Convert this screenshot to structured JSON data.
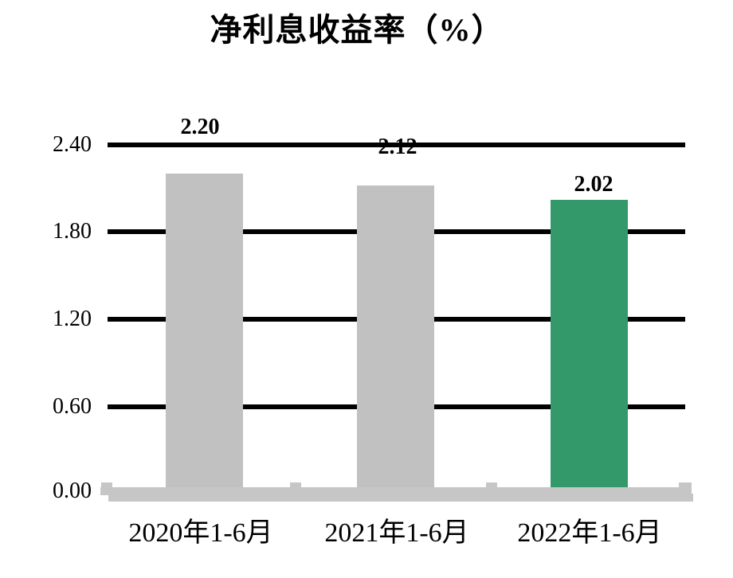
{
  "chart_data": {
    "type": "bar",
    "title": "净利息收益率（%）",
    "categories": [
      "2020年1-6月",
      "2021年1-6月",
      "2022年1-6月"
    ],
    "values": [
      2.2,
      2.12,
      2.02
    ],
    "data_labels": [
      "2.20",
      "2.12",
      "2.02"
    ],
    "bar_colors": [
      "#c1c1c1",
      "#c1c1c1",
      "#33996b"
    ],
    "ylim": [
      0,
      2.4
    ],
    "ytick_labels": [
      "0.00",
      "0.60",
      "1.20",
      "1.80",
      "2.40"
    ],
    "ytick_values": [
      0.0,
      0.6,
      1.2,
      1.8,
      2.4
    ],
    "grid": true,
    "legend_position": "none",
    "colors": {
      "gridline": "#000000",
      "axis_band": "#c6c6c6",
      "text": "#000000",
      "background": "#ffffff",
      "bar_default": "#c1c1c1",
      "bar_highlight": "#33996b"
    }
  }
}
